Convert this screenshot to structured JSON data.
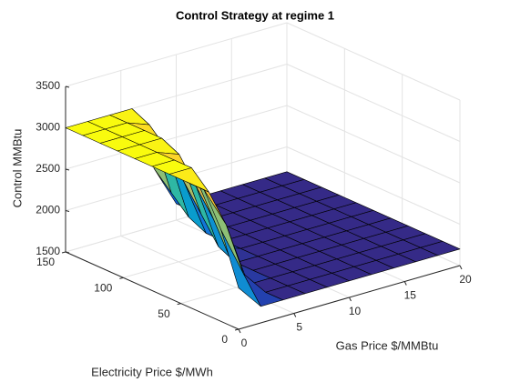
{
  "chart_data": {
    "type": "surface",
    "title": "Control Strategy at regime 1",
    "x_label": "Gas Price $/MMBtu",
    "y_label": "Electricity Price $/MWh",
    "z_label": "Control MMBtu",
    "x": [
      0,
      2,
      4,
      6,
      8,
      10,
      12,
      14,
      16,
      18,
      20
    ],
    "y": [
      0,
      15,
      30,
      45,
      60,
      75,
      90,
      105,
      120,
      135,
      150
    ],
    "z": [
      [
        2000,
        1700,
        1700,
        1700,
        1700,
        1700,
        1700,
        1700,
        1700,
        1700,
        1700
      ],
      [
        2600,
        2000,
        1700,
        1700,
        1700,
        1700,
        1700,
        1700,
        1700,
        1700,
        1700
      ],
      [
        3000,
        2500,
        1700,
        1700,
        1700,
        1700,
        1700,
        1700,
        1700,
        1700,
        1700
      ],
      [
        3000,
        2800,
        1900,
        1700,
        1700,
        1700,
        1700,
        1700,
        1700,
        1700,
        1700
      ],
      [
        3000,
        3000,
        2300,
        1700,
        1700,
        1700,
        1700,
        1700,
        1700,
        1700,
        1700
      ],
      [
        3000,
        3000,
        2600,
        1800,
        1700,
        1700,
        1700,
        1700,
        1700,
        1700,
        1700
      ],
      [
        3000,
        3000,
        2900,
        2100,
        1700,
        1700,
        1700,
        1700,
        1700,
        1700,
        1700
      ],
      [
        3000,
        3000,
        3000,
        2400,
        1700,
        1700,
        1700,
        1700,
        1700,
        1700,
        1700
      ],
      [
        3000,
        3000,
        3000,
        2700,
        1800,
        1700,
        1700,
        1700,
        1700,
        1700,
        1700
      ],
      [
        3000,
        3000,
        3000,
        2900,
        2000,
        1700,
        1700,
        1700,
        1700,
        1700,
        1700
      ],
      [
        3000,
        3000,
        3000,
        3000,
        2200,
        1700,
        1700,
        1700,
        1700,
        1700,
        1700
      ]
    ],
    "xlim": [
      0,
      20
    ],
    "ylim": [
      0,
      150
    ],
    "zlim": [
      1500,
      3500
    ],
    "xticks": [
      0,
      5,
      10,
      15,
      20
    ],
    "yticks": [
      0,
      50,
      100,
      150
    ],
    "zticks": [
      1500,
      2000,
      2500,
      3000,
      3500
    ],
    "grid": true,
    "colormap": [
      "#352a87",
      "#0f5cdd",
      "#1481d6",
      "#06a4ca",
      "#2eb7a4",
      "#87bf77",
      "#d1bb59",
      "#fec832",
      "#f9fb0e"
    ]
  }
}
